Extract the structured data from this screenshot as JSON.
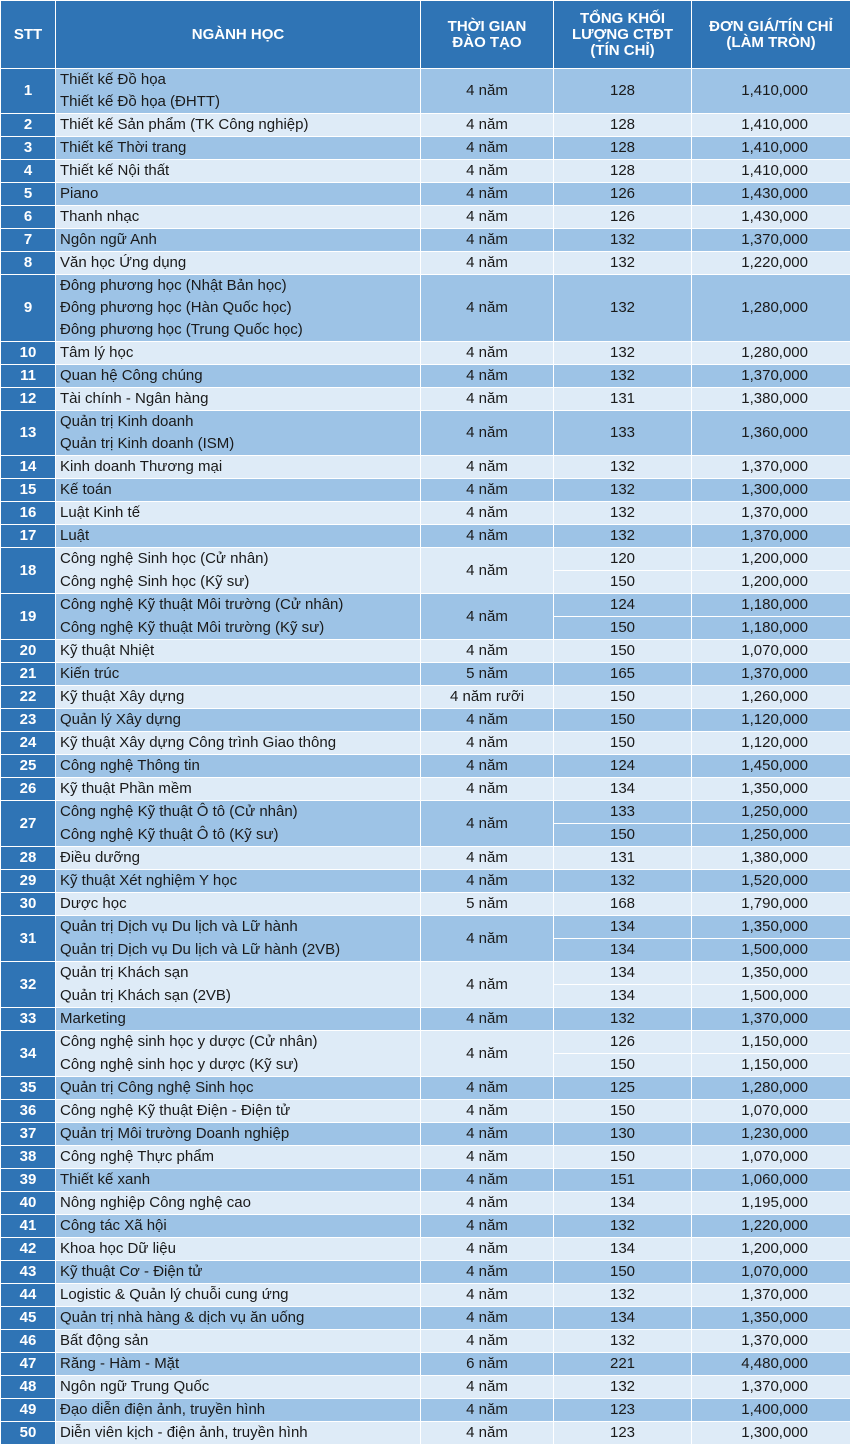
{
  "headers": {
    "stt": "STT",
    "nganh": "NGÀNH HỌC",
    "thoigian_1": "THỜI GIAN",
    "thoigian_2": "ĐÀO TẠO",
    "tinchi_1": "TỔNG KHỐI",
    "tinchi_2": "LƯỢNG CTĐT",
    "tinchi_3": "(TÍN CHỈ)",
    "dongia_1": "ĐƠN GIÁ/TÍN CHỈ",
    "dongia_2": "(LÀM TRÒN)"
  },
  "rows": [
    {
      "stt": "1",
      "names": [
        "Thiết kế Đồ họa",
        "Thiết kế Đồ họa (ĐHTT)"
      ],
      "tg": "4 năm",
      "tc": [
        "128"
      ],
      "dg": [
        "1,410,000"
      ]
    },
    {
      "stt": "2",
      "names": [
        "Thiết kế Sản phẩm (TK Công nghiệp)"
      ],
      "tg": "4 năm",
      "tc": [
        "128"
      ],
      "dg": [
        "1,410,000"
      ]
    },
    {
      "stt": "3",
      "names": [
        "Thiết kế Thời trang"
      ],
      "tg": "4 năm",
      "tc": [
        "128"
      ],
      "dg": [
        "1,410,000"
      ]
    },
    {
      "stt": "4",
      "names": [
        "Thiết kế Nội thất"
      ],
      "tg": "4 năm",
      "tc": [
        "128"
      ],
      "dg": [
        "1,410,000"
      ]
    },
    {
      "stt": "5",
      "names": [
        "Piano"
      ],
      "tg": "4 năm",
      "tc": [
        "126"
      ],
      "dg": [
        "1,430,000"
      ]
    },
    {
      "stt": "6",
      "names": [
        "Thanh nhạc"
      ],
      "tg": "4 năm",
      "tc": [
        "126"
      ],
      "dg": [
        "1,430,000"
      ]
    },
    {
      "stt": "7",
      "names": [
        "Ngôn ngữ Anh"
      ],
      "tg": "4 năm",
      "tc": [
        "132"
      ],
      "dg": [
        "1,370,000"
      ]
    },
    {
      "stt": "8",
      "names": [
        "Văn học Ứng dụng"
      ],
      "tg": "4 năm",
      "tc": [
        "132"
      ],
      "dg": [
        "1,220,000"
      ]
    },
    {
      "stt": "9",
      "names": [
        "Đông phương học (Nhật Bản học)",
        "Đông phương học (Hàn Quốc học)",
        "Đông phương học (Trung Quốc học)"
      ],
      "tg": "4 năm",
      "tc": [
        "132"
      ],
      "dg": [
        "1,280,000"
      ]
    },
    {
      "stt": "10",
      "names": [
        "Tâm lý học"
      ],
      "tg": "4 năm",
      "tc": [
        "132"
      ],
      "dg": [
        "1,280,000"
      ]
    },
    {
      "stt": "11",
      "names": [
        "Quan hệ Công chúng"
      ],
      "tg": "4 năm",
      "tc": [
        "132"
      ],
      "dg": [
        "1,370,000"
      ]
    },
    {
      "stt": "12",
      "names": [
        "Tài chính - Ngân hàng"
      ],
      "tg": "4 năm",
      "tc": [
        "131"
      ],
      "dg": [
        "1,380,000"
      ]
    },
    {
      "stt": "13",
      "names": [
        "Quản trị Kinh doanh",
        "Quản trị Kinh doanh (ISM)"
      ],
      "tg": "4 năm",
      "tc": [
        "133"
      ],
      "dg": [
        "1,360,000"
      ]
    },
    {
      "stt": "14",
      "names": [
        "Kinh doanh Thương mại"
      ],
      "tg": "4 năm",
      "tc": [
        "132"
      ],
      "dg": [
        "1,370,000"
      ]
    },
    {
      "stt": "15",
      "names": [
        "Kế toán"
      ],
      "tg": "4 năm",
      "tc": [
        "132"
      ],
      "dg": [
        "1,300,000"
      ]
    },
    {
      "stt": "16",
      "names": [
        "Luật Kinh tế"
      ],
      "tg": "4 năm",
      "tc": [
        "132"
      ],
      "dg": [
        "1,370,000"
      ]
    },
    {
      "stt": "17",
      "names": [
        "Luật"
      ],
      "tg": "4 năm",
      "tc": [
        "132"
      ],
      "dg": [
        "1,370,000"
      ]
    },
    {
      "stt": "18",
      "names": [
        "Công nghệ Sinh học (Cử nhân)",
        "Công nghệ Sinh học (Kỹ sư)"
      ],
      "tg": "4 năm",
      "tc": [
        "120",
        "150"
      ],
      "dg": [
        "1,200,000",
        "1,200,000"
      ]
    },
    {
      "stt": "19",
      "names": [
        "Công nghệ Kỹ thuật Môi trường (Cử nhân)",
        "Công nghệ Kỹ thuật Môi trường (Kỹ sư)"
      ],
      "tg": "4 năm",
      "tc": [
        "124",
        "150"
      ],
      "dg": [
        "1,180,000",
        "1,180,000"
      ]
    },
    {
      "stt": "20",
      "names": [
        "Kỹ thuật Nhiệt"
      ],
      "tg": "4 năm",
      "tc": [
        "150"
      ],
      "dg": [
        "1,070,000"
      ]
    },
    {
      "stt": "21",
      "names": [
        "Kiến trúc"
      ],
      "tg": "5 năm",
      "tc": [
        "165"
      ],
      "dg": [
        "1,370,000"
      ]
    },
    {
      "stt": "22",
      "names": [
        "Kỹ thuật Xây dựng"
      ],
      "tg": "4 năm rưỡi",
      "tc": [
        "150"
      ],
      "dg": [
        "1,260,000"
      ]
    },
    {
      "stt": "23",
      "names": [
        "Quản lý Xây dựng"
      ],
      "tg": "4 năm",
      "tc": [
        "150"
      ],
      "dg": [
        "1,120,000"
      ]
    },
    {
      "stt": "24",
      "names": [
        "Kỹ thuật Xây dựng Công trình Giao thông"
      ],
      "tg": "4 năm",
      "tc": [
        "150"
      ],
      "dg": [
        "1,120,000"
      ]
    },
    {
      "stt": "25",
      "names": [
        "Công nghệ Thông tin"
      ],
      "tg": "4 năm",
      "tc": [
        "124"
      ],
      "dg": [
        "1,450,000"
      ]
    },
    {
      "stt": "26",
      "names": [
        "Kỹ thuật Phần mềm"
      ],
      "tg": "4 năm",
      "tc": [
        "134"
      ],
      "dg": [
        "1,350,000"
      ]
    },
    {
      "stt": "27",
      "names": [
        "Công nghệ Kỹ thuật Ô tô (Cử nhân)",
        "Công nghệ Kỹ thuật Ô tô (Kỹ sư)"
      ],
      "tg": "4 năm",
      "tc": [
        "133",
        "150"
      ],
      "dg": [
        "1,250,000",
        "1,250,000"
      ]
    },
    {
      "stt": "28",
      "names": [
        "Điều dưỡng"
      ],
      "tg": "4 năm",
      "tc": [
        "131"
      ],
      "dg": [
        "1,380,000"
      ]
    },
    {
      "stt": "29",
      "names": [
        "Kỹ thuật Xét nghiệm Y học"
      ],
      "tg": "4 năm",
      "tc": [
        "132"
      ],
      "dg": [
        "1,520,000"
      ]
    },
    {
      "stt": "30",
      "names": [
        "Dược học"
      ],
      "tg": "5 năm",
      "tc": [
        "168"
      ],
      "dg": [
        "1,790,000"
      ]
    },
    {
      "stt": "31",
      "names": [
        "Quản trị Dịch vụ Du lịch và Lữ hành",
        "Quản trị Dịch vụ Du lịch và Lữ hành (2VB)"
      ],
      "tg": "4 năm",
      "tc": [
        "134",
        "134"
      ],
      "dg": [
        "1,350,000",
        "1,500,000"
      ]
    },
    {
      "stt": "32",
      "names": [
        "Quản trị Khách sạn",
        "Quản trị Khách sạn (2VB)"
      ],
      "tg": "4 năm",
      "tc": [
        "134",
        "134"
      ],
      "dg": [
        "1,350,000",
        "1,500,000"
      ]
    },
    {
      "stt": "33",
      "names": [
        "Marketing"
      ],
      "tg": "4 năm",
      "tc": [
        "132"
      ],
      "dg": [
        "1,370,000"
      ]
    },
    {
      "stt": "34",
      "names": [
        "Công nghệ sinh học y dược (Cử nhân)",
        "Công nghệ sinh học y dược (Kỹ sư)"
      ],
      "tg": "4 năm",
      "tc": [
        "126",
        "150"
      ],
      "dg": [
        "1,150,000",
        "1,150,000"
      ]
    },
    {
      "stt": "35",
      "names": [
        "Quản trị Công nghệ Sinh học"
      ],
      "tg": "4 năm",
      "tc": [
        "125"
      ],
      "dg": [
        "1,280,000"
      ]
    },
    {
      "stt": "36",
      "names": [
        "Công nghệ Kỹ thuật Điện - Điện tử"
      ],
      "tg": "4 năm",
      "tc": [
        "150"
      ],
      "dg": [
        "1,070,000"
      ]
    },
    {
      "stt": "37",
      "names": [
        "Quản trị Môi trường Doanh nghiệp"
      ],
      "tg": "4 năm",
      "tc": [
        "130"
      ],
      "dg": [
        "1,230,000"
      ]
    },
    {
      "stt": "38",
      "names": [
        "Công nghệ Thực phẩm"
      ],
      "tg": "4 năm",
      "tc": [
        "150"
      ],
      "dg": [
        "1,070,000"
      ]
    },
    {
      "stt": "39",
      "names": [
        "Thiết kế xanh"
      ],
      "tg": "4 năm",
      "tc": [
        "151"
      ],
      "dg": [
        "1,060,000"
      ]
    },
    {
      "stt": "40",
      "names": [
        "Nông nghiệp Công nghệ cao"
      ],
      "tg": "4 năm",
      "tc": [
        "134"
      ],
      "dg": [
        "1,195,000"
      ]
    },
    {
      "stt": "41",
      "names": [
        "Công tác Xã hội"
      ],
      "tg": "4 năm",
      "tc": [
        "132"
      ],
      "dg": [
        "1,220,000"
      ]
    },
    {
      "stt": "42",
      "names": [
        "Khoa học Dữ liệu"
      ],
      "tg": "4 năm",
      "tc": [
        "134"
      ],
      "dg": [
        "1,200,000"
      ]
    },
    {
      "stt": "43",
      "names": [
        "Kỹ thuật Cơ - Điện tử"
      ],
      "tg": "4 năm",
      "tc": [
        "150"
      ],
      "dg": [
        "1,070,000"
      ]
    },
    {
      "stt": "44",
      "names": [
        "Logistic & Quản lý chuỗi cung ứng"
      ],
      "tg": "4 năm",
      "tc": [
        "132"
      ],
      "dg": [
        "1,370,000"
      ]
    },
    {
      "stt": "45",
      "names": [
        "Quản trị nhà hàng & dịch vụ ăn uống"
      ],
      "tg": "4 năm",
      "tc": [
        "134"
      ],
      "dg": [
        "1,350,000"
      ]
    },
    {
      "stt": "46",
      "names": [
        "Bất động sản"
      ],
      "tg": "4 năm",
      "tc": [
        "132"
      ],
      "dg": [
        "1,370,000"
      ]
    },
    {
      "stt": "47",
      "names": [
        "Răng - Hàm - Mặt"
      ],
      "tg": "6 năm",
      "tc": [
        "221"
      ],
      "dg": [
        "4,480,000"
      ]
    },
    {
      "stt": "48",
      "names": [
        "Ngôn ngữ Trung Quốc"
      ],
      "tg": "4 năm",
      "tc": [
        "132"
      ],
      "dg": [
        "1,370,000"
      ]
    },
    {
      "stt": "49",
      "names": [
        "Đạo diễn điện ảnh, truyền hình"
      ],
      "tg": "4 năm",
      "tc": [
        "123"
      ],
      "dg": [
        "1,400,000"
      ]
    },
    {
      "stt": "50",
      "names": [
        "Diễn viên kịch - điện ảnh, truyền hình"
      ],
      "tg": "4 năm",
      "tc": [
        "123"
      ],
      "dg": [
        "1,300,000"
      ]
    }
  ]
}
